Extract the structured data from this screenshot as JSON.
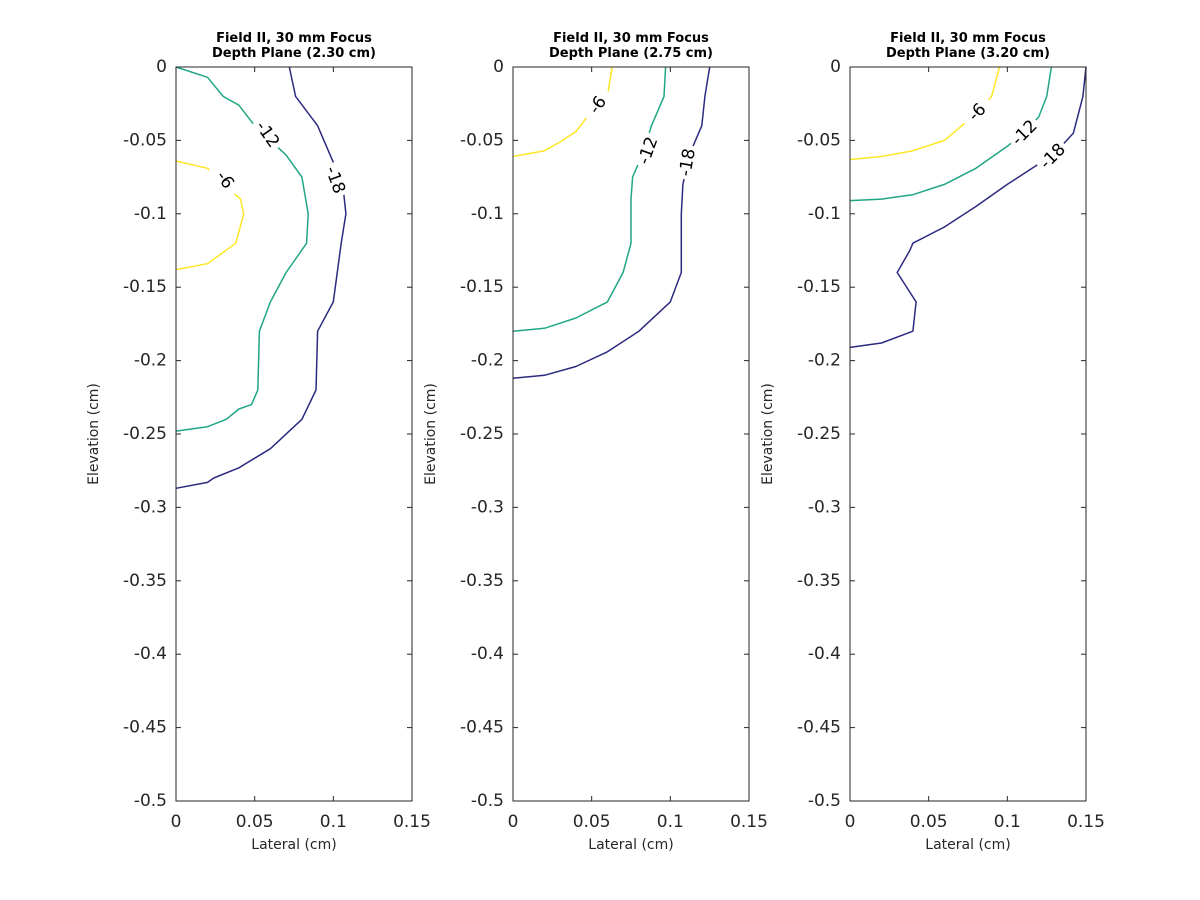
{
  "chart_data": [
    {
      "type": "contour",
      "title": [
        "Field II, 30 mm Focus",
        "Depth Plane (2.30 cm)"
      ],
      "xlabel": "Lateral (cm)",
      "ylabel": "Elevation (cm)",
      "xlim": [
        0,
        0.15
      ],
      "ylim": [
        -0.5,
        0
      ],
      "x_ticks": [
        "0",
        "0.05",
        "0.1",
        "0.15"
      ],
      "y_ticks": [
        "0",
        "-0.05",
        "-0.1",
        "-0.15",
        "-0.2",
        "-0.25",
        "-0.3",
        "-0.35",
        "-0.4",
        "-0.45",
        "-0.5"
      ],
      "grid": false,
      "contours": [
        {
          "level": "-6",
          "color": "#fde725",
          "points": [
            [
              0,
              -0.064
            ],
            [
              0.02,
              -0.069
            ],
            [
              0.03,
              -0.08
            ],
            [
              0.041,
              -0.09
            ],
            [
              0.043,
              -0.1
            ],
            [
              0.038,
              -0.12
            ],
            [
              0.02,
              -0.134
            ],
            [
              0,
              -0.138
            ]
          ],
          "label_at": [
            0.031,
            -0.077
          ],
          "label_angle": 55
        },
        {
          "level": "-12",
          "color": "#21a685",
          "points": [
            [
              0,
              0
            ],
            [
              0.02,
              -0.007
            ],
            [
              0.03,
              -0.02
            ],
            [
              0.04,
              -0.026
            ],
            [
              0.05,
              -0.04
            ],
            [
              0.07,
              -0.06
            ],
            [
              0.08,
              -0.075
            ],
            [
              0.084,
              -0.1
            ],
            [
              0.083,
              -0.12
            ],
            [
              0.07,
              -0.14
            ],
            [
              0.06,
              -0.16
            ],
            [
              0.053,
              -0.18
            ],
            [
              0.052,
              -0.22
            ],
            [
              0.048,
              -0.23
            ],
            [
              0.04,
              -0.233
            ],
            [
              0.032,
              -0.24
            ],
            [
              0.02,
              -0.245
            ],
            [
              0,
              -0.248
            ]
          ],
          "label_at": [
            0.058,
            -0.046
          ],
          "label_angle": 55
        },
        {
          "level": "-18",
          "color": "#2c2a7f",
          "points": [
            [
              0.072,
              0
            ],
            [
              0.076,
              -0.02
            ],
            [
              0.09,
              -0.04
            ],
            [
              0.098,
              -0.06
            ],
            [
              0.106,
              -0.08
            ],
            [
              0.108,
              -0.1
            ],
            [
              0.105,
              -0.12
            ],
            [
              0.1,
              -0.16
            ],
            [
              0.09,
              -0.18
            ],
            [
              0.089,
              -0.22
            ],
            [
              0.08,
              -0.24
            ],
            [
              0.06,
              -0.26
            ],
            [
              0.04,
              -0.273
            ],
            [
              0.024,
              -0.28
            ],
            [
              0.02,
              -0.283
            ],
            [
              0,
              -0.287
            ]
          ],
          "label_at": [
            0.101,
            -0.077
          ],
          "label_angle": 70
        }
      ]
    },
    {
      "type": "contour",
      "title": [
        "Field II, 30 mm Focus",
        "Depth Plane (2.75 cm)"
      ],
      "xlabel": "Lateral (cm)",
      "ylabel": "Elevation (cm)",
      "xlim": [
        0,
        0.15
      ],
      "ylim": [
        -0.5,
        0
      ],
      "x_ticks": [
        "0",
        "0.05",
        "0.1",
        "0.15"
      ],
      "y_ticks": [
        "0",
        "-0.05",
        "-0.1",
        "-0.15",
        "-0.2",
        "-0.25",
        "-0.3",
        "-0.35",
        "-0.4",
        "-0.45",
        "-0.5"
      ],
      "grid": false,
      "contours": [
        {
          "level": "-6",
          "color": "#fde725",
          "points": [
            [
              0.063,
              0
            ],
            [
              0.06,
              -0.02
            ],
            [
              0.05,
              -0.03
            ],
            [
              0.04,
              -0.044
            ],
            [
              0.03,
              -0.051
            ],
            [
              0.02,
              -0.057
            ],
            [
              0,
              -0.061
            ]
          ],
          "label_at": [
            0.054,
            -0.026
          ],
          "label_angle": -55
        },
        {
          "level": "-12",
          "color": "#21a685",
          "points": [
            [
              0.097,
              0
            ],
            [
              0.096,
              -0.02
            ],
            [
              0.088,
              -0.04
            ],
            [
              0.082,
              -0.06
            ],
            [
              0.076,
              -0.075
            ],
            [
              0.075,
              -0.09
            ],
            [
              0.075,
              -0.12
            ],
            [
              0.07,
              -0.14
            ],
            [
              0.06,
              -0.16
            ],
            [
              0.04,
              -0.171
            ],
            [
              0.02,
              -0.178
            ],
            [
              0,
              -0.18
            ]
          ],
          "label_at": [
            0.086,
            -0.057
          ],
          "label_angle": -70
        },
        {
          "level": "-18",
          "color": "#2c2a7f",
          "points": [
            [
              0.125,
              0
            ],
            [
              0.122,
              -0.02
            ],
            [
              0.12,
              -0.04
            ],
            [
              0.112,
              -0.06
            ],
            [
              0.108,
              -0.08
            ],
            [
              0.107,
              -0.1
            ],
            [
              0.107,
              -0.14
            ],
            [
              0.1,
              -0.16
            ],
            [
              0.08,
              -0.18
            ],
            [
              0.06,
              -0.194
            ],
            [
              0.04,
              -0.204
            ],
            [
              0.02,
              -0.21
            ],
            [
              0,
              -0.212
            ]
          ],
          "label_at": [
            0.111,
            -0.065
          ],
          "label_angle": -80
        }
      ]
    },
    {
      "type": "contour",
      "title": [
        "Field II, 30 mm Focus",
        "Depth Plane (3.20 cm)"
      ],
      "xlabel": "Lateral (cm)",
      "ylabel": "Elevation (cm)",
      "xlim": [
        0,
        0.15
      ],
      "ylim": [
        -0.5,
        0
      ],
      "x_ticks": [
        "0",
        "0.05",
        "0.1",
        "0.15"
      ],
      "y_ticks": [
        "0",
        "-0.05",
        "-0.1",
        "-0.15",
        "-0.2",
        "-0.25",
        "-0.3",
        "-0.35",
        "-0.4",
        "-0.45",
        "-0.5"
      ],
      "grid": false,
      "contours": [
        {
          "level": "-6",
          "color": "#fde725",
          "points": [
            [
              0.095,
              0
            ],
            [
              0.09,
              -0.02
            ],
            [
              0.08,
              -0.032
            ],
            [
              0.07,
              -0.041
            ],
            [
              0.06,
              -0.05
            ],
            [
              0.04,
              -0.057
            ],
            [
              0.02,
              -0.061
            ],
            [
              0,
              -0.063
            ]
          ],
          "label_at": [
            0.081,
            -0.031
          ],
          "label_angle": -45
        },
        {
          "level": "-12",
          "color": "#21a685",
          "points": [
            [
              0.128,
              0
            ],
            [
              0.125,
              -0.02
            ],
            [
              0.12,
              -0.034
            ],
            [
              0.108,
              -0.047
            ],
            [
              0.1,
              -0.054
            ],
            [
              0.08,
              -0.069
            ],
            [
              0.06,
              -0.08
            ],
            [
              0.04,
              -0.087
            ],
            [
              0.02,
              -0.09
            ],
            [
              0,
              -0.091
            ]
          ],
          "label_at": [
            0.111,
            -0.045
          ],
          "label_angle": -45
        },
        {
          "level": "-18",
          "color": "#2c2a7f",
          "points": [
            [
              0.15,
              0
            ],
            [
              0.148,
              -0.02
            ],
            [
              0.142,
              -0.045
            ],
            [
              0.13,
              -0.059
            ],
            [
              0.12,
              -0.066
            ],
            [
              0.1,
              -0.08
            ],
            [
              0.08,
              -0.095
            ],
            [
              0.06,
              -0.109
            ],
            [
              0.04,
              -0.12
            ],
            [
              0.038,
              -0.125
            ],
            [
              0.03,
              -0.14
            ],
            [
              0.042,
              -0.16
            ],
            [
              0.04,
              -0.18
            ],
            [
              0.02,
              -0.188
            ],
            [
              0,
              -0.191
            ]
          ],
          "label_at": [
            0.129,
            -0.061
          ],
          "label_angle": -45
        }
      ]
    }
  ]
}
